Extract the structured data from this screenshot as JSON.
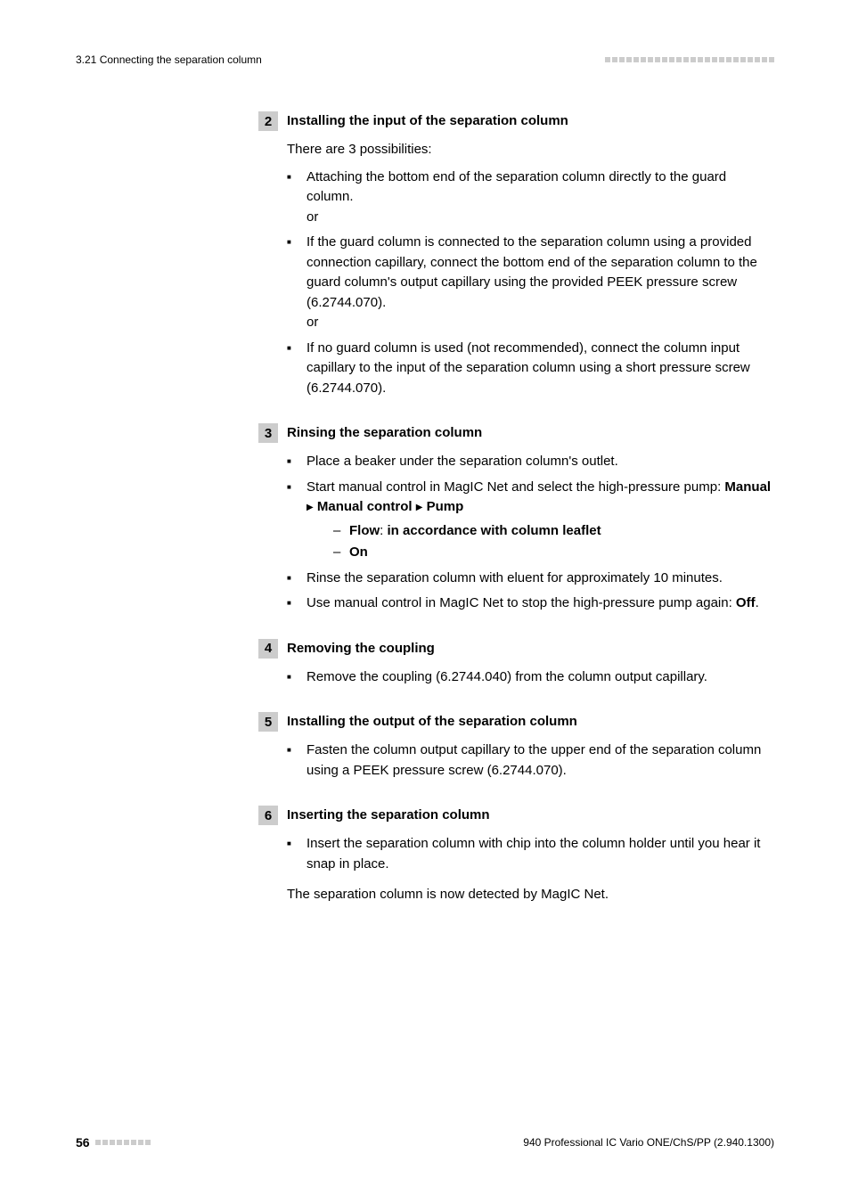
{
  "header": {
    "section": "3.21 Connecting the separation column"
  },
  "steps": {
    "s2": {
      "num": "2",
      "title": "Installing the input of the separation column",
      "intro": "There are 3 possibilities:",
      "b1": "Attaching the bottom end of the separation column directly to the guard column.",
      "or1": "or",
      "b2": "If the guard column is connected to the separation column using a provided connection capillary, connect the bottom end of the separation column to the guard column's output capillary using the provided PEEK pressure screw (6.2744.070).",
      "or2": "or",
      "b3": "If no guard column is used (not recommended), connect the column input capillary to the input of the separation column using a short pressure screw (6.2744.070)."
    },
    "s3": {
      "num": "3",
      "title": "Rinsing the separation column",
      "b1": "Place a beaker under the separation column's outlet.",
      "b2_pre": "Start manual control in MagIC Net and select the high-pressure pump: ",
      "b2_m1": "Manual",
      "b2_m2": "Manual control",
      "b2_m3": "Pump",
      "d1a": "Flow",
      "d1b": ": ",
      "d1c": "in accordance with column leaflet",
      "d2": "On",
      "b3": "Rinse the separation column with eluent for approximately 10 minutes.",
      "b4_pre": "Use manual control in MagIC Net to stop the high-pressure pump again: ",
      "b4_off": "Off",
      "b4_post": "."
    },
    "s4": {
      "num": "4",
      "title": "Removing the coupling",
      "b1": "Remove the coupling (6.2744.040) from the column output capillary."
    },
    "s5": {
      "num": "5",
      "title": "Installing the output of the separation column",
      "b1": "Fasten the column output capillary to the upper end of the separation column using a PEEK pressure screw (6.2744.070)."
    },
    "s6": {
      "num": "6",
      "title": "Inserting the separation column",
      "b1": "Insert the separation column with chip into the column holder until you hear it snap in place.",
      "closing": "The separation column is now detected by MagIC Net."
    }
  },
  "footer": {
    "page": "56",
    "doc": "940 Professional IC Vario ONE/ChS/PP (2.940.1300)"
  },
  "style": {
    "header_dot_count": 24,
    "footer_dot_count": 8,
    "dot_color": "#cccccc",
    "step_num_bg": "#cccccc",
    "text_color": "#000000",
    "bg_color": "#ffffff",
    "body_font_size": 15,
    "header_font_size": 12
  }
}
